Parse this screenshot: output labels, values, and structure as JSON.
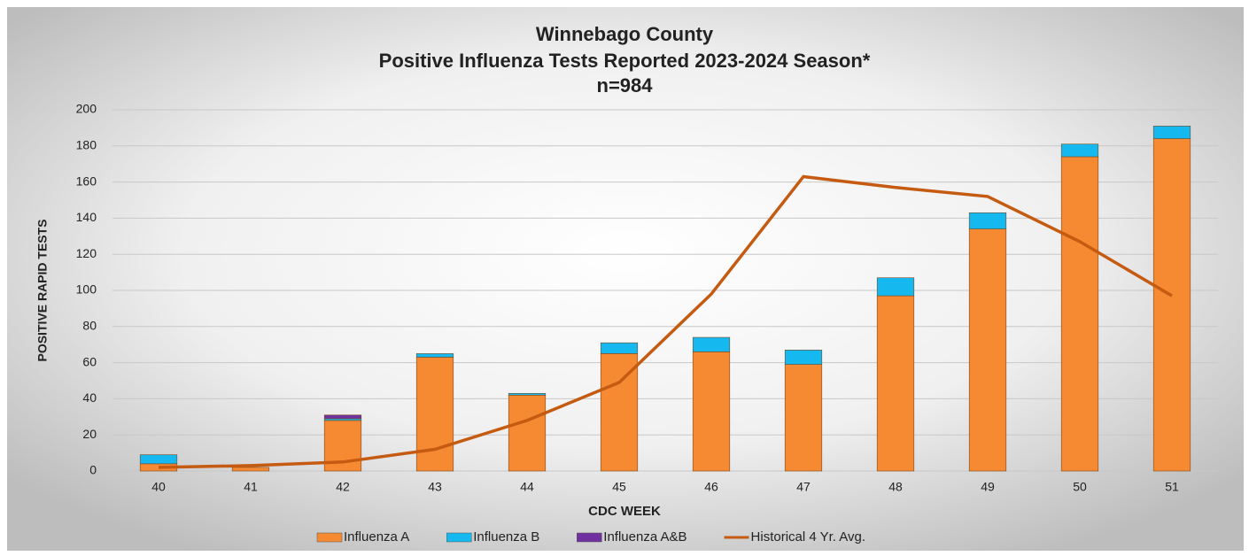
{
  "chart_data": {
    "type": "bar",
    "stacked": true,
    "title": [
      "Winnebago County",
      "Positive Influenza Tests Reported 2023-2024 Season*",
      "n=984"
    ],
    "x_label": "CDC WEEK",
    "y_label": "POSITIVE RAPID TESTS",
    "categories": [
      "40",
      "41",
      "42",
      "43",
      "44",
      "45",
      "46",
      "47",
      "48",
      "49",
      "50",
      "51"
    ],
    "series": [
      {
        "name": "Influenza A",
        "color": "#f58a33",
        "values": [
          4,
          2,
          28,
          63,
          42,
          65,
          66,
          59,
          97,
          134,
          174,
          184
        ]
      },
      {
        "name": "Influenza B",
        "color": "#16b8f0",
        "values": [
          5,
          0,
          1,
          2,
          1,
          6,
          8,
          8,
          10,
          9,
          7,
          7
        ]
      },
      {
        "name": "Influenza A&B",
        "color": "#7030a0",
        "values": [
          0,
          0,
          2,
          0,
          0,
          0,
          0,
          0,
          0,
          0,
          0,
          0
        ]
      },
      {
        "name": "Historical 4 Yr. Avg.",
        "type": "line",
        "color": "#c55a11",
        "values": [
          2,
          3,
          5,
          12,
          28,
          49,
          98,
          163,
          157,
          152,
          127,
          97
        ]
      }
    ],
    "ylim": [
      0,
      200
    ],
    "yticks": [
      0,
      20,
      40,
      60,
      80,
      100,
      120,
      140,
      160,
      180,
      200
    ],
    "grid": true,
    "legend": "bottom"
  }
}
